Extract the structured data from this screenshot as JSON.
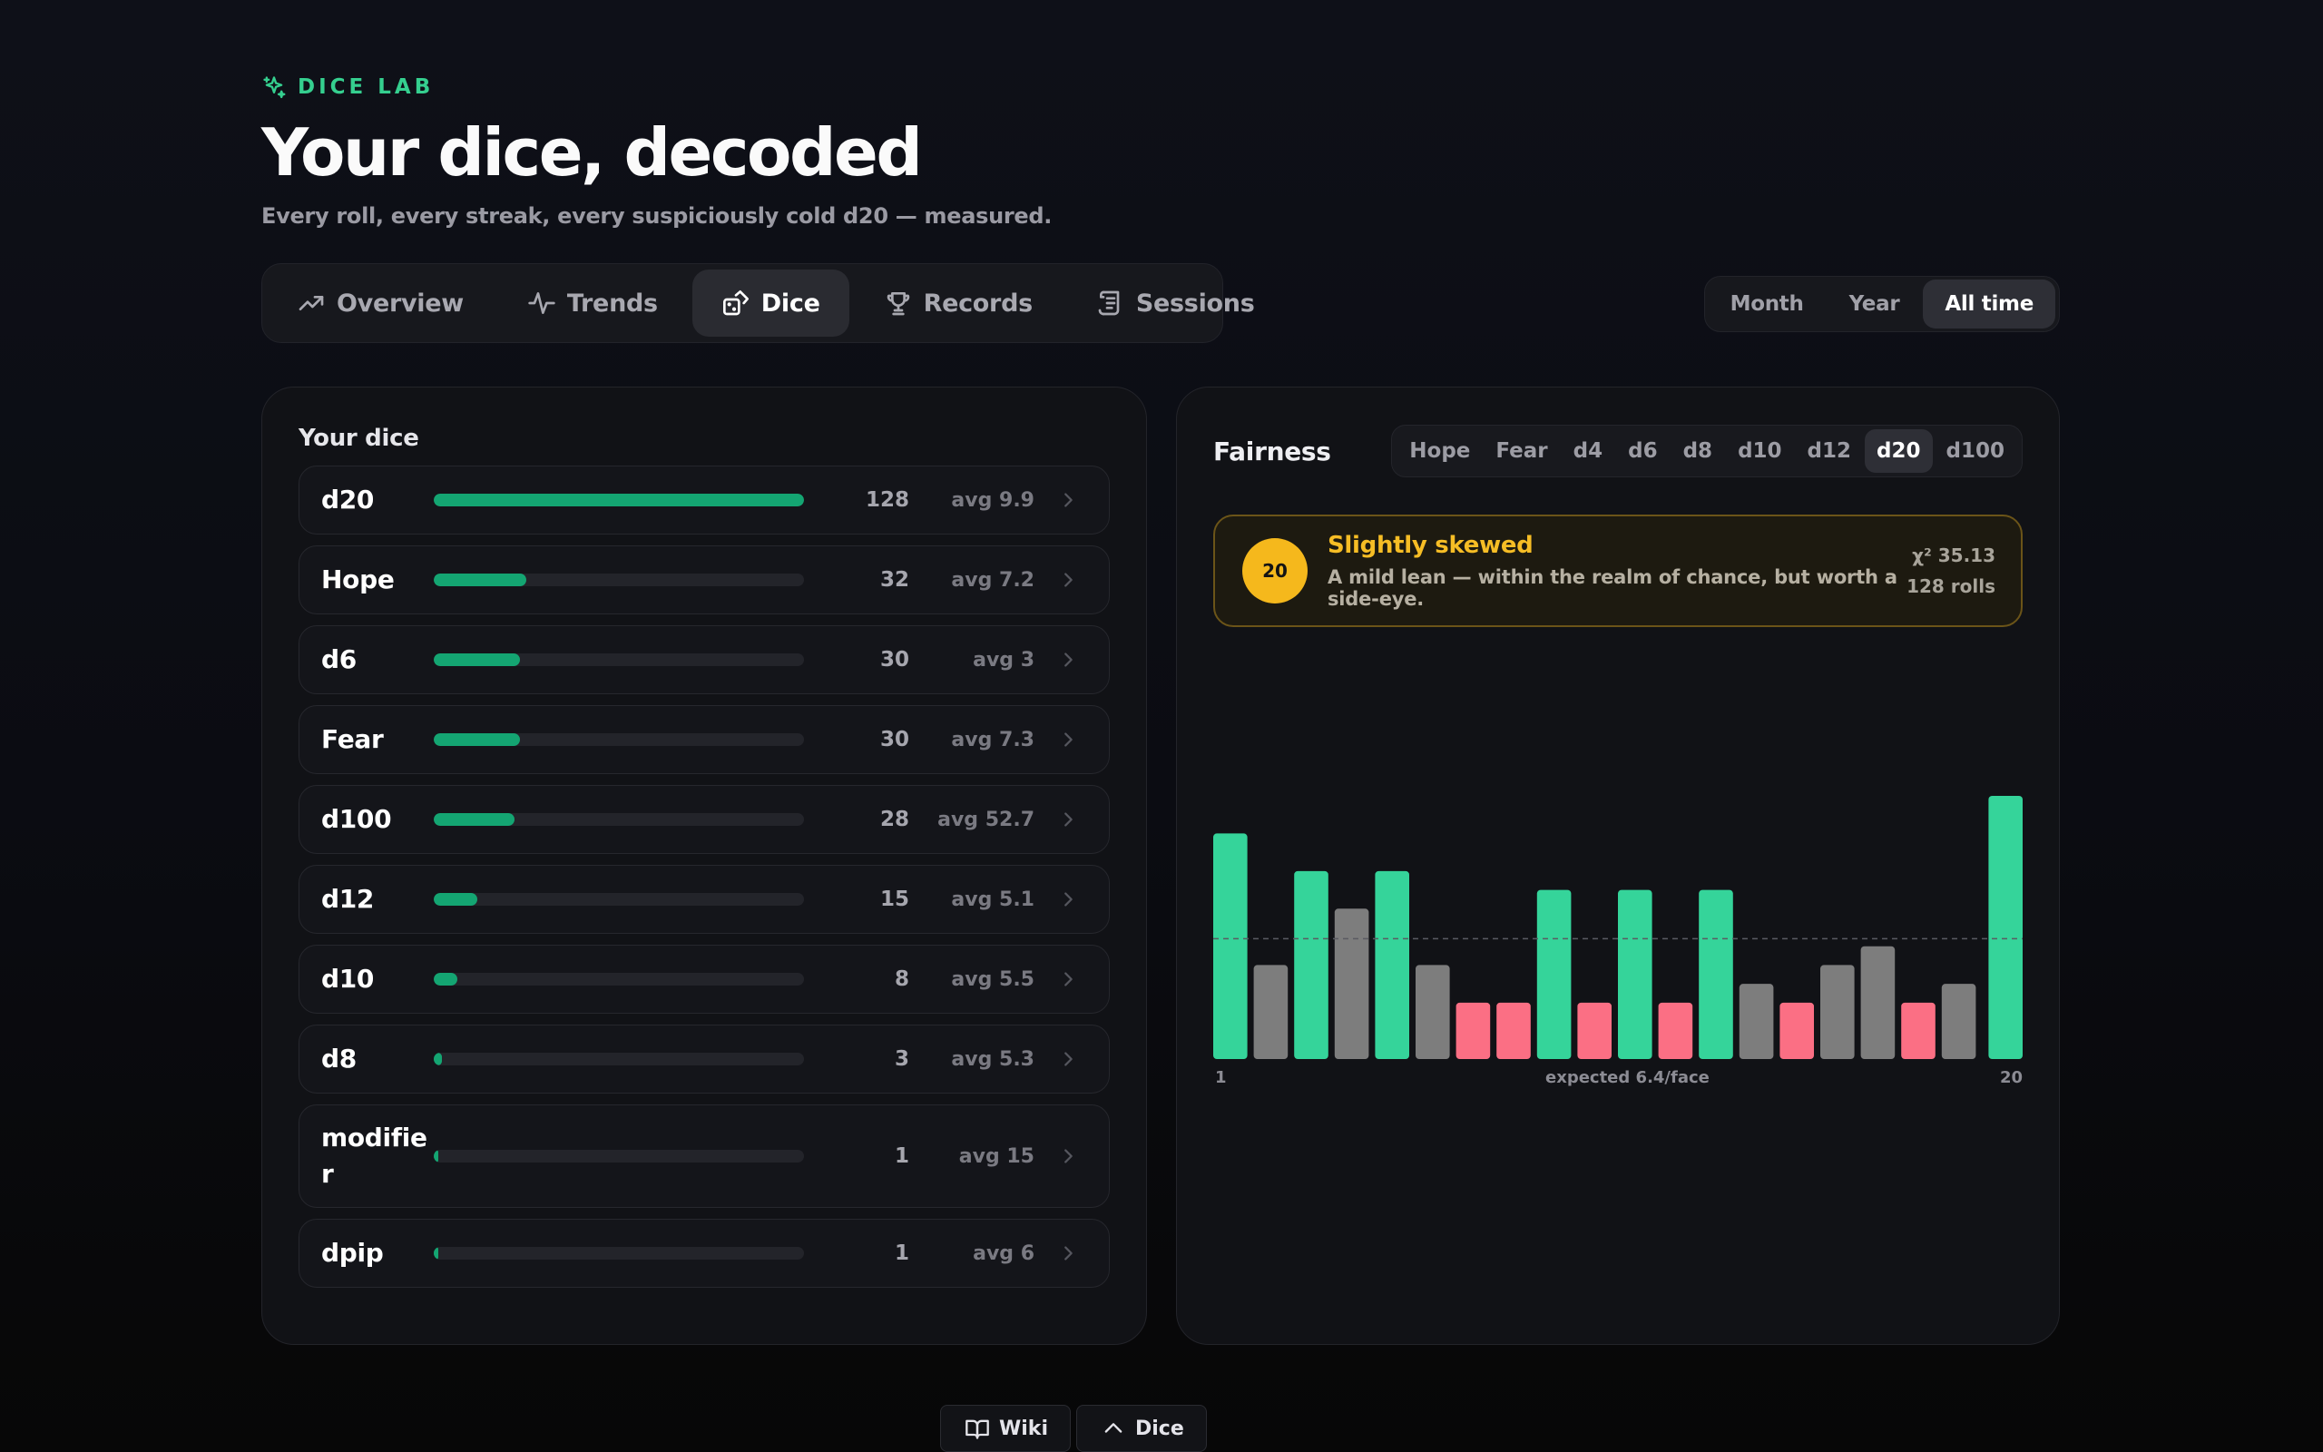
{
  "brand": {
    "label": "DICE LAB",
    "icon": "sparkles-icon",
    "color": "#35cf8f"
  },
  "header": {
    "title": "Your dice, decoded",
    "subtitle": "Every roll, every streak, every suspiciously cold d20 — measured."
  },
  "tabs": [
    {
      "label": "Overview",
      "icon": "trending-up-icon",
      "active": false
    },
    {
      "label": "Trends",
      "icon": "activity-icon",
      "active": false
    },
    {
      "label": "Dice",
      "icon": "dice-icon",
      "active": true
    },
    {
      "label": "Records",
      "icon": "trophy-icon",
      "active": false
    },
    {
      "label": "Sessions",
      "icon": "scroll-icon",
      "active": false
    }
  ],
  "range": {
    "options": [
      "Month",
      "Year",
      "All time"
    ],
    "selected": "All time"
  },
  "your_dice": {
    "title": "Your dice",
    "items": [
      {
        "name": "d20",
        "count": "128",
        "avg": "avg 9.9",
        "share": 1.0
      },
      {
        "name": "Hope",
        "count": "32",
        "avg": "avg 7.2",
        "share": 0.25
      },
      {
        "name": "d6",
        "count": "30",
        "avg": "avg 3",
        "share": 0.234
      },
      {
        "name": "Fear",
        "count": "30",
        "avg": "avg 7.3",
        "share": 0.234
      },
      {
        "name": "d100",
        "count": "28",
        "avg": "avg 52.7",
        "share": 0.219
      },
      {
        "name": "d12",
        "count": "15",
        "avg": "avg 5.1",
        "share": 0.117
      },
      {
        "name": "d10",
        "count": "8",
        "avg": "avg 5.5",
        "share": 0.0625
      },
      {
        "name": "d8",
        "count": "3",
        "avg": "avg 5.3",
        "share": 0.023
      },
      {
        "name": "modifier",
        "count": "1",
        "avg": "avg 15",
        "share": 0.008
      },
      {
        "name": "dpip",
        "count": "1",
        "avg": "avg 6",
        "share": 0.008
      }
    ]
  },
  "fairness": {
    "title": "Fairness",
    "dice_options": [
      "Hope",
      "Fear",
      "d4",
      "d6",
      "d8",
      "d10",
      "d12",
      "d20",
      "d100"
    ],
    "selected": "d20",
    "verdict": {
      "badge": "20",
      "title": "Slightly skewed",
      "description": "A mild lean — within the realm of chance, but worth a side-eye.",
      "chi_label": "χ² 35.13",
      "rolls_label": "128 rolls",
      "color": "#f5b81c"
    }
  },
  "chart_data": {
    "type": "bar",
    "categories": [
      "1",
      "2",
      "3",
      "4",
      "5",
      "6",
      "7",
      "8",
      "9",
      "10",
      "11",
      "12",
      "13",
      "14",
      "15",
      "16",
      "17",
      "18",
      "19",
      "20"
    ],
    "values": [
      12,
      5,
      10,
      8,
      10,
      5,
      3,
      3,
      9,
      3,
      9,
      3,
      9,
      4,
      3,
      5,
      6,
      3,
      4,
      14
    ],
    "expected": 6.4,
    "axis_start_label": "1",
    "axis_end_label": "20",
    "expected_label": "expected 6.4/face",
    "colors": {
      "high": "#35d49a",
      "normal": "#7d7d7d",
      "low": "#fb6f84",
      "expected_line": "#5a5b62"
    }
  },
  "footer": {
    "wiki_label": "Wiki",
    "dice_label": "Dice"
  }
}
